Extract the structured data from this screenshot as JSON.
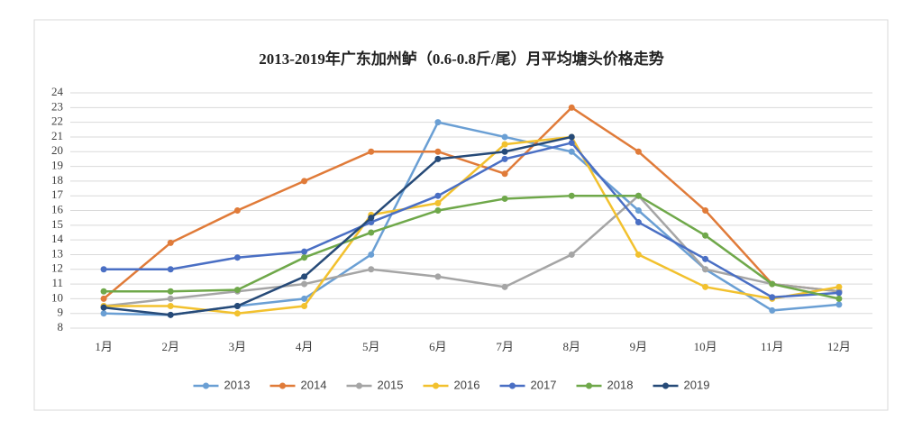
{
  "chart_data": {
    "type": "line",
    "title": "2013-2019年广东加州鲈（0.6-0.8斤/尾）月平均塘头价格走势",
    "categories": [
      "1月",
      "2月",
      "3月",
      "4月",
      "5月",
      "6月",
      "7月",
      "8月",
      "9月",
      "10月",
      "11月",
      "12月"
    ],
    "series": [
      {
        "name": "2013",
        "color": "#6a9fd4",
        "values": [
          9,
          8.9,
          9.5,
          10,
          13,
          22,
          21,
          20,
          16,
          12,
          9.2,
          9.6
        ]
      },
      {
        "name": "2014",
        "color": "#e07b39",
        "values": [
          10,
          13.8,
          16,
          18,
          20,
          20,
          18.5,
          23,
          20,
          16,
          11,
          10.5
        ]
      },
      {
        "name": "2015",
        "color": "#a5a5a5",
        "values": [
          9.5,
          10,
          10.5,
          11,
          12,
          11.5,
          10.8,
          13,
          17,
          12,
          11,
          10.5
        ]
      },
      {
        "name": "2016",
        "color": "#f2c12e",
        "values": [
          9.5,
          9.5,
          9,
          9.5,
          15.7,
          16.5,
          20.5,
          21,
          13,
          10.8,
          10,
          10.8
        ]
      },
      {
        "name": "2017",
        "color": "#4a6fc4",
        "values": [
          12,
          12,
          12.8,
          13.2,
          15.2,
          17,
          19.5,
          20.6,
          15.2,
          12.7,
          10.1,
          10.4
        ]
      },
      {
        "name": "2018",
        "color": "#6fa84a",
        "values": [
          10.5,
          10.5,
          10.6,
          12.8,
          14.5,
          16,
          16.8,
          17,
          17,
          14.3,
          11,
          10
        ]
      },
      {
        "name": "2019",
        "color": "#264a78",
        "values": [
          9.4,
          8.9,
          9.5,
          11.5,
          15.5,
          19.5,
          20,
          21,
          null,
          null,
          null,
          null
        ]
      }
    ],
    "ylim": [
      8,
      24
    ],
    "yticks": [
      8,
      9,
      10,
      11,
      12,
      13,
      14,
      15,
      16,
      17,
      18,
      19,
      20,
      21,
      22,
      23,
      24
    ],
    "grid": true,
    "legend": "bottom"
  }
}
